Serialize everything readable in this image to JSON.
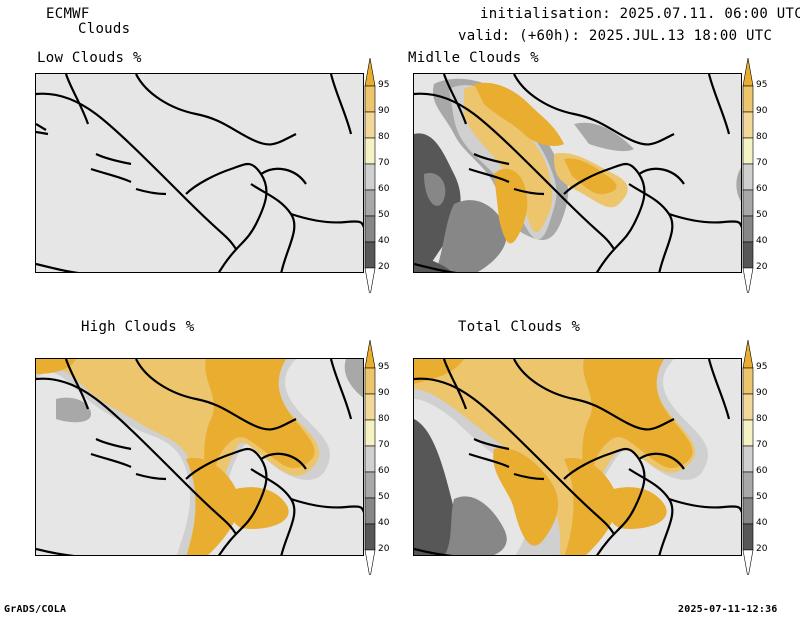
{
  "header": {
    "model": "ECMWF",
    "product": "Clouds",
    "initialisation": "initialisation: 2025.07.11. 06:00 UTC",
    "valid": "valid: (+60h): 2025.JUL.13 18:00 UTC"
  },
  "panels": [
    {
      "id": "low",
      "title": "Low Clouds %"
    },
    {
      "id": "middle",
      "title": "Midlle Clouds %"
    },
    {
      "id": "high",
      "title": "High Clouds %"
    },
    {
      "id": "total",
      "title": "Total Clouds %"
    }
  ],
  "colorbar": {
    "levels": [
      "20",
      "40",
      "50",
      "60",
      "70",
      "80",
      "90",
      "95"
    ],
    "colors": {
      "lt20": "#ffffff",
      "20_40": "#575757",
      "40_50": "#878787",
      "50_60": "#a8a8a8",
      "60_70": "#d0d0d0",
      "70_80": "#f5f2c4",
      "80_90": "#f2d99a",
      "90_95": "#ecc56d",
      "gt95": "#e9ad30"
    }
  },
  "colors": {
    "background": "#e6e6e6",
    "cloud_full": "#e9ad30",
    "border": "#000000"
  },
  "footer": {
    "left": "GrADS/COLA",
    "right": "2025-07-11-12:36"
  }
}
